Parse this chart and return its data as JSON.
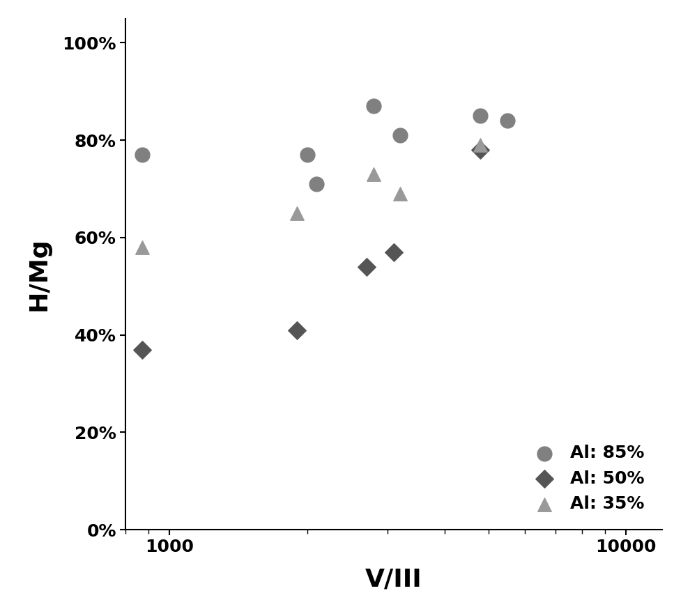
{
  "title": "",
  "xlabel": "V/III",
  "ylabel": "H/Mg",
  "xlim": [
    800,
    12000
  ],
  "ylim": [
    0.0,
    1.05
  ],
  "yticks": [
    0.0,
    0.2,
    0.4,
    0.6,
    0.8,
    1.0
  ],
  "ytick_labels": [
    "0%",
    "20%",
    "40%",
    "60%",
    "80%",
    "100%"
  ],
  "series": [
    {
      "label": "Al: 85%",
      "marker": "o",
      "color": "#808080",
      "markersize": 15,
      "x": [
        870,
        2000,
        2100,
        2800,
        3200,
        4800,
        5500
      ],
      "y": [
        0.77,
        0.77,
        0.71,
        0.87,
        0.81,
        0.85,
        0.84
      ]
    },
    {
      "label": "Al: 50%",
      "marker": "D",
      "color": "#555555",
      "markersize": 13,
      "x": [
        870,
        1900,
        2700,
        3100,
        4800
      ],
      "y": [
        0.37,
        0.41,
        0.54,
        0.57,
        0.78
      ]
    },
    {
      "label": "Al: 35%",
      "marker": "^",
      "color": "#999999",
      "markersize": 14,
      "x": [
        870,
        1900,
        2800,
        3200,
        4800
      ],
      "y": [
        0.58,
        0.65,
        0.73,
        0.69,
        0.79
      ]
    }
  ],
  "legend_loc": "lower right",
  "legend_fontsize": 18,
  "axis_label_fontsize": 26,
  "tick_fontsize": 18,
  "background_color": "#ffffff",
  "spine_color": "#000000"
}
